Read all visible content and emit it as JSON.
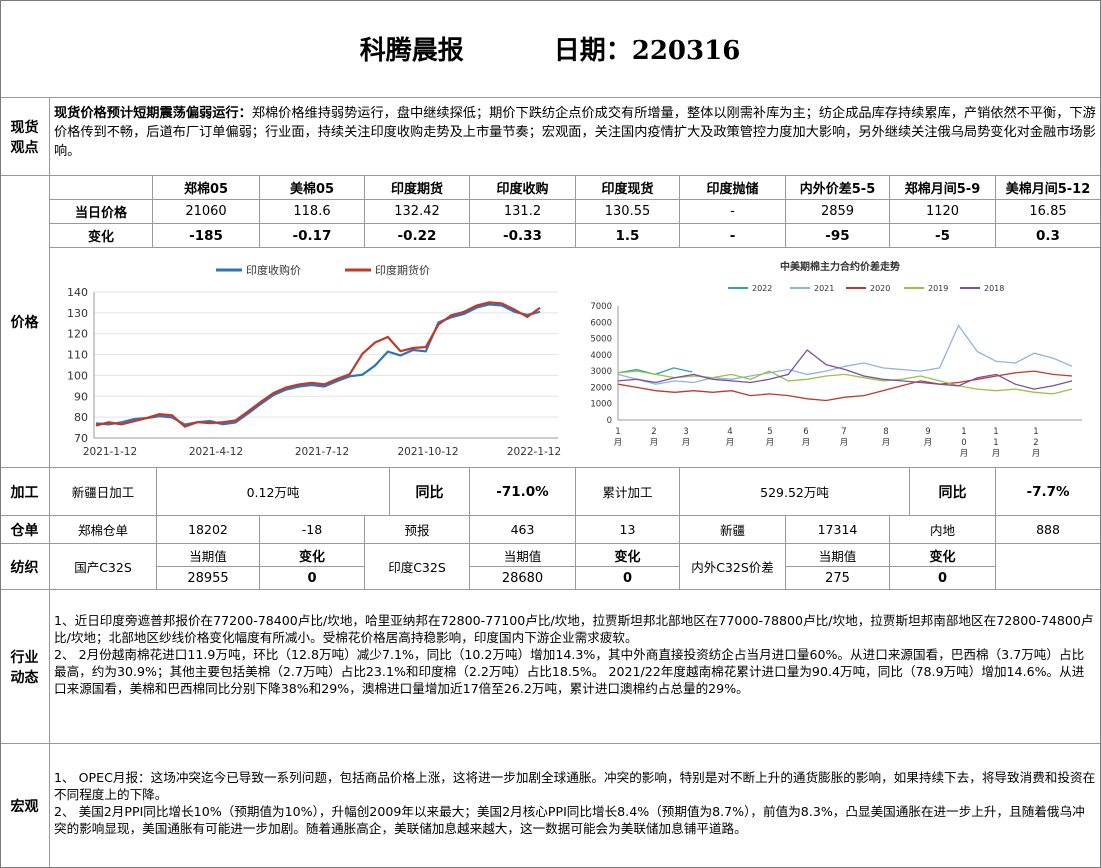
{
  "header": {
    "title": "科腾晨报",
    "date_label": "日期：220316"
  },
  "spot": {
    "label": "现货\n观点",
    "headline": "现货价格预计短期震荡偏弱运行：",
    "text": "郑棉价格维持弱势运行，盘中继续探低；期价下跌纺企点价成交有所增量，整体以刚需补库为主；纺企成品库存持续累库，产销依然不平衡，下游价格传到不畅，后道布厂订单偏弱；行业面，持续关注印度收购走势及上市量节奏；宏观面，关注国内疫情扩大及政策管控力度加大影响，另外继续关注俄乌局势变化对金融市场影响。"
  },
  "price": {
    "label": "价格",
    "columns": [
      "郑棉05",
      "美棉05",
      "印度期货",
      "印度收购",
      "印度现货",
      "印度抛储",
      "内外价差5-5",
      "郑棉月间5-9",
      "美棉月间5-12"
    ],
    "row1_label": "当日价格",
    "row1": [
      "21060",
      "118.6",
      "132.42",
      "131.2",
      "130.55",
      "-",
      "2859",
      "1120",
      "16.85"
    ],
    "row2_label": "变化",
    "row2": [
      "-185",
      "-0.17",
      "-0.22",
      "-0.33",
      "1.5",
      "-",
      "-95",
      "-5",
      "0.3"
    ]
  },
  "chart_data": [
    {
      "type": "line",
      "legend": [
        "印度收购价",
        "印度期货价"
      ],
      "legend_colors": [
        "#2e75b6",
        "#c0392b"
      ],
      "xticks": [
        "2021-1-12",
        "2021-4-12",
        "2021-7-12",
        "2021-10-12",
        "2022-1-12"
      ],
      "yticks": [
        70,
        80,
        90,
        100,
        110,
        120,
        130,
        140
      ],
      "ylim": [
        70,
        140
      ],
      "series": [
        {
          "name": "印度收购价",
          "color": "#2e75b6",
          "values": [
            77,
            76,
            77,
            79,
            80,
            81,
            80,
            76,
            77,
            78,
            77,
            78,
            82,
            86,
            90,
            93,
            95,
            96,
            95,
            97,
            99,
            100,
            105,
            112,
            110,
            112,
            111,
            125,
            128,
            130,
            133,
            134,
            133,
            130,
            129,
            131
          ]
        },
        {
          "name": "印度期货价",
          "color": "#c0392b",
          "values": [
            76,
            77,
            76,
            78,
            80,
            82,
            81,
            75,
            77,
            77,
            78,
            79,
            83,
            87,
            91,
            94,
            96,
            97,
            96,
            98,
            100,
            110,
            116,
            119,
            112,
            113,
            113,
            124,
            129,
            131,
            134,
            135,
            134,
            131,
            128,
            133
          ]
        }
      ]
    },
    {
      "type": "line",
      "title": "中美期棉主力合约价差走势",
      "legend": [
        "2022",
        "2021",
        "2020",
        "2019",
        "2018"
      ],
      "legend_colors": [
        "#2ca3b0",
        "#8fb3e0",
        "#c0392b",
        "#9ac24a",
        "#7a4fa0"
      ],
      "yticks": [
        0,
        1000,
        2000,
        3000,
        4000,
        5000,
        6000,
        7000
      ],
      "ylim": [
        0,
        7000
      ],
      "xticks": [
        "1\n月",
        "2\n月",
        "3\n月",
        "4\n月",
        "5\n月",
        "6\n月",
        "7\n月",
        "8\n月",
        "9\n月",
        "1\n0\n月",
        "1\n1\n月",
        "1\n2\n月"
      ],
      "series": [
        {
          "name": "2022",
          "color": "#2ca3b0",
          "values": [
            2900,
            3100,
            2800,
            3200,
            2950
          ]
        },
        {
          "name": "2021",
          "color": "#8fb3e0",
          "values": [
            2800,
            2500,
            2200,
            2400,
            2300,
            2600,
            2500,
            2700,
            2900,
            3100,
            2800,
            3000,
            3300,
            3500,
            3200,
            3100,
            3000,
            3200,
            5800,
            4200,
            3600,
            3500,
            4100,
            3800,
            3300
          ]
        },
        {
          "name": "2020",
          "color": "#c0392b",
          "values": [
            2200,
            2000,
            1800,
            1700,
            1800,
            1700,
            1800,
            1500,
            1600,
            1500,
            1300,
            1200,
            1400,
            1500,
            1800,
            2100,
            2400,
            2200,
            2300,
            2500,
            2700,
            2900,
            3000,
            2800,
            2700
          ]
        },
        {
          "name": "2019",
          "color": "#9ac24a",
          "values": [
            2900,
            3000,
            2800,
            2600,
            2700,
            2600,
            2800,
            2500,
            3000,
            2400,
            2500,
            2700,
            2800,
            2600,
            2400,
            2500,
            2700,
            2400,
            2100,
            1900,
            1800,
            1900,
            1700,
            1600,
            1900
          ]
        },
        {
          "name": "2018",
          "color": "#7a4fa0",
          "values": [
            2400,
            2500,
            2300,
            2600,
            2800,
            2500,
            2400,
            2300,
            2500,
            2800,
            4300,
            3400,
            3100,
            2700,
            2500,
            2400,
            2300,
            2200,
            2100,
            2600,
            2800,
            2200,
            1900,
            2100,
            2400
          ]
        }
      ]
    }
  ],
  "process": {
    "label": "加工",
    "xj_label": "新疆日加工",
    "xj_value": "0.12万吨",
    "yoy1_label": "同比",
    "yoy1_value": "-71.0%",
    "cum_label": "累计加工",
    "cum_value": "529.52万吨",
    "yoy2_label": "同比",
    "yoy2_value": "-7.7%"
  },
  "warehouse": {
    "label": "仓单",
    "cells": [
      "郑棉仓单",
      "18202",
      "-18",
      "预报",
      "463",
      "13",
      "新疆",
      "17314",
      "内地",
      "888"
    ]
  },
  "textile": {
    "label": "纺织",
    "c1": "国产C32S",
    "cur1": "当期值",
    "chg1": "变化",
    "v1": "28955",
    "d1": "0",
    "c2": "印度C32S",
    "cur2": "当期值",
    "chg2": "变化",
    "v2": "28680",
    "d2": "0",
    "c3": "内外C32S价差",
    "cur3": "当期值",
    "chg3": "变化",
    "v3": "275",
    "d3": "0"
  },
  "industry": {
    "label": "行业\n动态",
    "p1": "1、近日印度旁遮普邦报价在77200-78400卢比/坎地，哈里亚纳邦在72800-77100卢比/坎地，拉贾斯坦邦北部地区在77000-78800卢比/坎地，拉贾斯坦邦南部地区在72800-74800卢比/坎地；北部地区纱线价格变化幅度有所减小。受棉花价格居高持稳影响，印度国内下游企业需求疲软。",
    "p2": "2、 2月份越南棉花进口11.9万吨，环比（12.8万吨）减少7.1%，同比（10.2万吨）增加14.3%，其中外商直接投资纺企占当月进口量60%。从进口来源国看，巴西棉（3.7万吨）占比最高，约为30.9%；其他主要包括美棉（2.7万吨）占比23.1%和印度棉（2.2万吨）占比18.5%。 2021/22年度越南棉花累计进口量为90.4万吨，同比（78.9万吨）增加14.6%。从进口来源国看，美棉和巴西棉同比分别下降38%和29%，澳棉进口量增加近17倍至26.2万吨，累计进口澳棉约占总量的29%。"
  },
  "macro": {
    "label": "宏观",
    "p1": "1、 OPEC月报：这场冲突迄今已导致一系列问题，包括商品价格上涨，这将进一步加剧全球通胀。冲突的影响，特别是对不断上升的通货膨胀的影响，如果持续下去，将导致消费和投资在不同程度上的下降。",
    "p2": "2、 美国2月PPI同比增长10%（预期值为10%），升幅创2009年以来最大；美国2月核心PPI同比增长8.4%（预期值为8.7%），前值为8.3%，凸显美国通胀在进一步上升，且随着俄乌冲突的影响显现，美国通胀有可能进一步加剧。随着通胀高企，美联储加息越来越大，这一数据可能会为美联储加息铺平道路。"
  }
}
